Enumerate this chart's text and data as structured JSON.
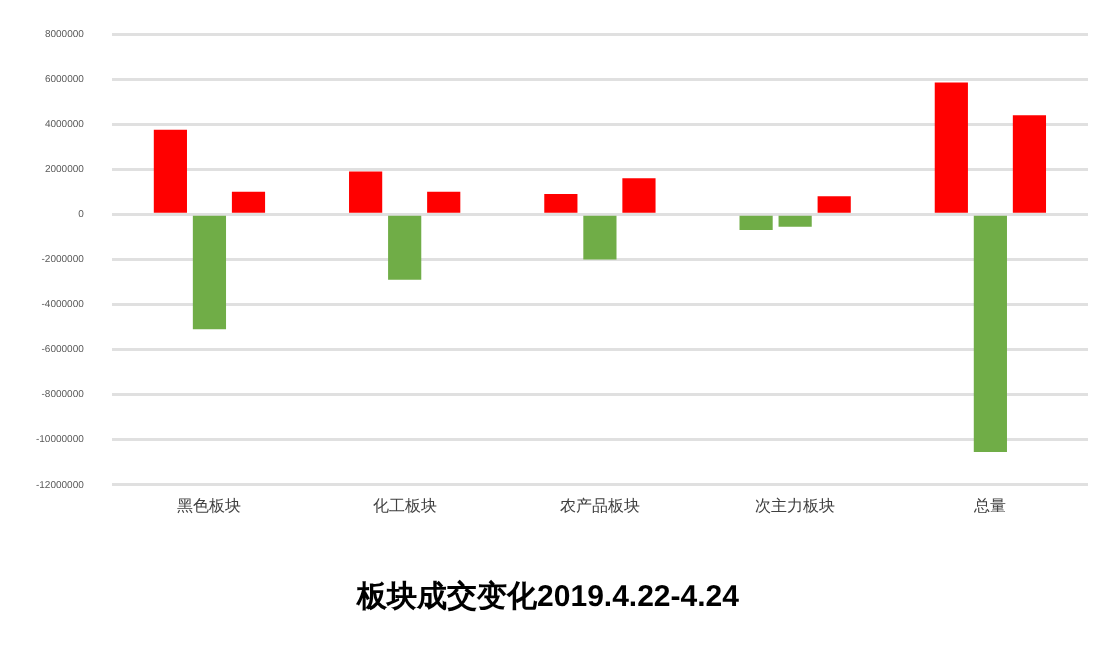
{
  "chart_data": {
    "type": "bar",
    "title": "板块成交变化2019.4.22-4.24",
    "categories": [
      "黑色板块",
      "化工板块",
      "农产品板块",
      "次主力板块",
      "总量"
    ],
    "series": [
      {
        "colors": [
          "#ff0000",
          "#ff0000",
          "#ff0000",
          "#70ad47",
          "#ff0000"
        ],
        "values": [
          3750000,
          1900000,
          900000,
          -700000,
          5850000
        ]
      },
      {
        "colors": [
          "#70ad47",
          "#70ad47",
          "#70ad47",
          "#70ad47",
          "#70ad47"
        ],
        "values": [
          -5100000,
          -2900000,
          -2000000,
          -550000,
          -10550000
        ]
      },
      {
        "colors": [
          "#ff0000",
          "#ff0000",
          "#ff0000",
          "#ff0000",
          "#ff0000"
        ],
        "values": [
          1000000,
          1000000,
          1600000,
          800000,
          4400000
        ]
      }
    ],
    "ylim": [
      -12000000,
      8000000
    ],
    "yticks": [
      -12000000,
      -10000000,
      -8000000,
      -6000000,
      -4000000,
      -2000000,
      0,
      2000000,
      4000000,
      6000000,
      8000000
    ],
    "grid": "y",
    "legend": false
  }
}
